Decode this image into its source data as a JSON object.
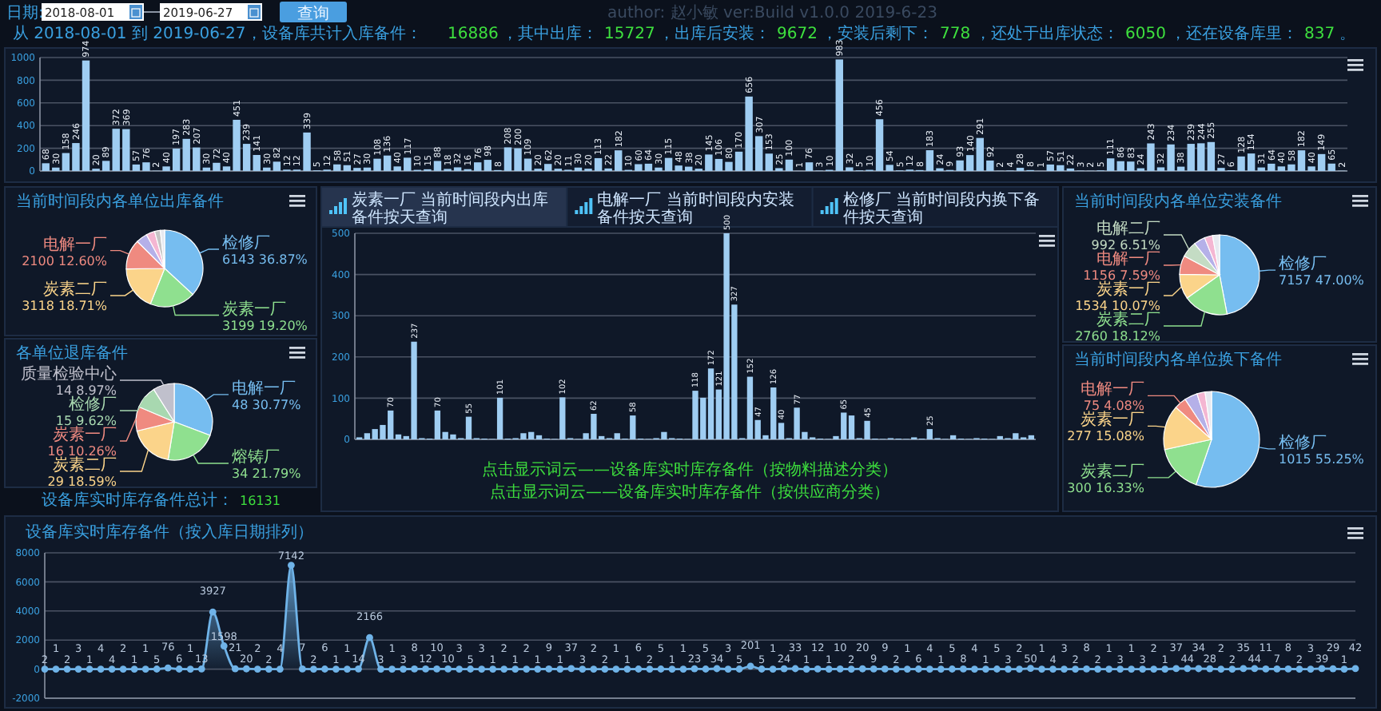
{
  "chart_data": [
    {
      "type": "other",
      "annotations": [
        "日期:",
        "2018-08-01",
        "2019-06-27",
        "查询",
        "author: 赵小敏 ver:Build v1.0.0 2019-6-23",
        "从 2018-08-01 到 2019-06-27，设备库共计入库备件：",
        "16886",
        "，其中出库：",
        "15727",
        "，出库后安装：",
        "9672",
        "，安装后剩下：",
        "778",
        "，还处于出库状态：",
        "6050",
        "，还在设备库里：",
        "837",
        "。",
        "设备库实时库存备件总计：",
        "16131"
      ]
    },
    {
      "type": "bar",
      "categories": [
        null,
        null,
        null,
        null,
        null,
        null,
        null,
        null,
        null,
        null,
        null,
        null,
        null,
        null,
        null,
        null,
        null,
        null,
        null,
        null,
        null,
        null,
        null,
        null,
        null,
        null,
        null,
        null,
        null,
        null,
        null,
        null,
        null,
        null,
        null,
        null,
        null,
        null,
        null,
        null,
        null,
        null,
        null,
        null,
        null,
        null,
        null,
        null,
        null,
        null,
        null,
        null,
        null,
        null,
        null,
        null,
        null,
        null,
        null,
        null,
        null,
        null,
        null,
        null,
        null,
        null,
        null,
        null,
        null,
        null,
        null,
        null,
        null,
        null,
        null,
        null,
        null,
        null,
        null,
        null,
        null,
        null,
        null,
        null,
        null,
        null,
        null,
        null,
        null,
        null,
        null,
        null,
        null,
        null,
        null,
        null,
        null,
        null,
        null,
        null,
        null,
        null,
        null,
        null,
        null,
        null,
        null,
        null,
        null,
        null,
        null,
        null,
        null,
        null,
        null,
        null,
        null,
        null,
        null,
        null,
        null,
        null,
        null,
        null,
        null,
        null,
        null,
        null,
        null,
        null
      ],
      "values": [
        68,
        30,
        158,
        246,
        974,
        20,
        89,
        372,
        369,
        57,
        76,
        2,
        40,
        197,
        283,
        207,
        30,
        72,
        40,
        451,
        239,
        141,
        30,
        82,
        12,
        12,
        339,
        5,
        12,
        58,
        51,
        27,
        30,
        108,
        136,
        40,
        117,
        10,
        15,
        88,
        18,
        32,
        16,
        76,
        98,
        8,
        208,
        200,
        109,
        20,
        62,
        20,
        11,
        30,
        20,
        113,
        22,
        182,
        10,
        60,
        64,
        30,
        115,
        48,
        38,
        20,
        145,
        106,
        80,
        170,
        656,
        307,
        153,
        25,
        100,
        1,
        76,
        3,
        10,
        983,
        32,
        5,
        10,
        456,
        54,
        5,
        12,
        8,
        183,
        24,
        9,
        93,
        140,
        291,
        92,
        2,
        4,
        28,
        8,
        1,
        57,
        51,
        22,
        3,
        2,
        5,
        111,
        86,
        83,
        24,
        243,
        32,
        234,
        38,
        239,
        244,
        255,
        27,
        6,
        128,
        154,
        31,
        64,
        40,
        58,
        182,
        40,
        149,
        65,
        2
      ],
      "color": "#9fcdf2",
      "ylim": [
        0,
        1000
      ],
      "yticks": [
        0,
        200,
        400,
        600,
        800,
        1000
      ],
      "grid": true,
      "data_labels": true
    },
    {
      "type": "pie",
      "title": "当前时间段内各单位出库备件",
      "categories": [
        "检修厂",
        "炭素一厂",
        "炭素二厂",
        "电解一厂",
        null,
        null,
        null,
        null
      ],
      "values": [
        6143,
        3199,
        3118,
        2100,
        800,
        600,
        400,
        301
      ],
      "colors": [
        "#76bdf0",
        "#8fe08f",
        "#fbd48a",
        "#ef8a80",
        "#b5b0e8",
        "#f4b6d2",
        "#c6c6c6",
        "#e6e9f0"
      ],
      "value_labels": [
        "6143 36.87%",
        "3199 19.20%",
        "3118 18.71%",
        "2100 12.60%",
        null,
        null,
        null,
        null
      ]
    },
    {
      "type": "pie",
      "title": "各单位退库备件",
      "categories": [
        "电解一厂",
        "熔铸厂",
        "炭素二厂",
        "炭素一厂",
        "检修厂",
        "质量检验中心"
      ],
      "values": [
        48,
        34,
        29,
        16,
        15,
        14
      ],
      "colors": [
        "#76bdf0",
        "#8fe08f",
        "#fbd48a",
        "#ef8a80",
        "#a8d8b0",
        "#c0c0cc"
      ],
      "value_labels": [
        "48 30.77%",
        "34 21.79%",
        "29 18.59%",
        "16 10.26%",
        "15 9.62%",
        "14 8.97%"
      ]
    },
    {
      "type": "bar",
      "categories": [
        null,
        null,
        null,
        null,
        null,
        null,
        null,
        null,
        null,
        null,
        null,
        null,
        null,
        null,
        null,
        null,
        null,
        null,
        null,
        null,
        null,
        null,
        null,
        null,
        null,
        null,
        null,
        null,
        null,
        null,
        null,
        null,
        null,
        null,
        null,
        null,
        null,
        null,
        null,
        null,
        null,
        null,
        null,
        null,
        null,
        null,
        null,
        null,
        null,
        null,
        null,
        null,
        null,
        null,
        null,
        null,
        null,
        null,
        null,
        null,
        null,
        null,
        null,
        null,
        null,
        null,
        null,
        null,
        null,
        null,
        null,
        null,
        null,
        null,
        null,
        null,
        null,
        null,
        null,
        null,
        null,
        null,
        null,
        null,
        null,
        null,
        null
      ],
      "values": [
        5,
        15,
        25,
        35,
        70,
        12,
        8,
        237,
        3,
        2,
        70,
        18,
        12,
        3,
        55,
        3,
        2,
        1,
        101,
        2,
        3,
        15,
        18,
        10,
        2,
        1,
        102,
        3,
        1,
        15,
        62,
        8,
        3,
        15,
        2,
        58,
        2,
        1,
        3,
        18,
        3,
        2,
        1,
        118,
        101,
        172,
        121,
        500,
        327,
        3,
        152,
        47,
        10,
        126,
        40,
        3,
        77,
        18,
        5,
        2,
        1,
        8,
        65,
        58,
        3,
        45,
        2,
        1,
        3,
        2,
        1,
        5,
        2,
        25,
        3,
        1,
        10,
        2,
        1,
        3,
        2,
        1,
        8,
        3,
        15,
        5,
        10
      ],
      "value_labels": [
        null,
        null,
        null,
        null,
        "70",
        null,
        null,
        "237",
        null,
        null,
        "70",
        null,
        null,
        null,
        "55",
        null,
        null,
        null,
        "101",
        null,
        null,
        null,
        null,
        null,
        null,
        null,
        "102",
        null,
        null,
        null,
        "62",
        null,
        null,
        null,
        null,
        "58",
        null,
        null,
        null,
        null,
        null,
        null,
        null,
        "118",
        null,
        "172",
        "121",
        "500",
        "327",
        null,
        "152",
        "47",
        null,
        "126",
        "40",
        null,
        "77",
        null,
        null,
        null,
        null,
        null,
        "65",
        null,
        null,
        "45",
        null,
        null,
        null,
        null,
        null,
        null,
        null,
        "25",
        null,
        null,
        null,
        null,
        null,
        null,
        null,
        null,
        null,
        null,
        null,
        null,
        null
      ],
      "color": "#9fcdf2",
      "ylim": [
        0,
        500
      ],
      "yticks": [
        0,
        100,
        200,
        300,
        400,
        500
      ],
      "grid": true,
      "annotations": [
        "炭素一厂 当前时间段内出库备件按天查询",
        "电解一厂 当前时间段内安装备件按天查询",
        "检修厂 当前时间段内换下备件按天查询",
        "点击显示词云——设备库实时库存备件（按物料描述分类）",
        "点击显示词云——设备库实时库存备件（按供应商分类）"
      ]
    },
    {
      "type": "pie",
      "title": "当前时间段内各单位安装备件",
      "categories": [
        "检修厂",
        "炭素二厂",
        "炭素一厂",
        "电解一厂",
        "电解二厂",
        null,
        null,
        null
      ],
      "values": [
        7157,
        2760,
        1534,
        1156,
        992,
        700,
        500,
        429
      ],
      "colors": [
        "#76bdf0",
        "#8fe08f",
        "#fbd48a",
        "#ef8a80",
        "#c4dcc4",
        "#b5b0e8",
        "#f4b6d2",
        "#e6e9f0"
      ],
      "value_labels": [
        "7157 47.00%",
        "2760 18.12%",
        "1534 10.07%",
        "1156 7.59%",
        "992 6.51%",
        null,
        null,
        null
      ]
    },
    {
      "type": "pie",
      "title": "当前时间段内各单位换下备件",
      "categories": [
        "检修厂",
        "炭素二厂",
        "炭素一厂",
        "电解一厂",
        null,
        null,
        null
      ],
      "values": [
        1015,
        300,
        277,
        75,
        80,
        50,
        40
      ],
      "colors": [
        "#76bdf0",
        "#8fe08f",
        "#fbd48a",
        "#ef8a80",
        "#b5b0e8",
        "#f4b6d2",
        "#e6e9f0"
      ],
      "value_labels": [
        "1015 55.25%",
        "300 16.33%",
        "277 15.08%",
        "75 4.08%",
        null,
        null,
        null
      ]
    },
    {
      "type": "area",
      "title": "设备库实时库存备件（按入库日期排列）",
      "categories": [
        null,
        null,
        null,
        null,
        null,
        null,
        null,
        null,
        null,
        null,
        null,
        null,
        null,
        null,
        null,
        null,
        null,
        null,
        null,
        null,
        null,
        null,
        null,
        null,
        null,
        null,
        null,
        null,
        null,
        null,
        null,
        null,
        null,
        null,
        null,
        null,
        null,
        null,
        null,
        null,
        null,
        null,
        null,
        null,
        null,
        null,
        null,
        null,
        null,
        null,
        null,
        null,
        null,
        null,
        null,
        null,
        null,
        null,
        null,
        null,
        null,
        null,
        null,
        null,
        null,
        null,
        null,
        null,
        null,
        null,
        null,
        null,
        null,
        null,
        null,
        null,
        null,
        null,
        null,
        null,
        null,
        null,
        null,
        null,
        null,
        null,
        null,
        null,
        null,
        null,
        null,
        null,
        null,
        null,
        null,
        null,
        null,
        null,
        null,
        null,
        null,
        null,
        null,
        null,
        null,
        null,
        null,
        null,
        null,
        null,
        null,
        null,
        null,
        null,
        null,
        null,
        null,
        null
      ],
      "values": [
        2,
        1,
        2,
        3,
        1,
        4,
        4,
        2,
        1,
        1,
        5,
        76,
        6,
        1,
        13,
        3927,
        1598,
        21,
        20,
        2,
        2,
        4,
        7142,
        7,
        2,
        6,
        1,
        1,
        14,
        2166,
        3,
        1,
        3,
        8,
        12,
        10,
        10,
        3,
        5,
        3,
        1,
        2,
        1,
        2,
        1,
        9,
        1,
        37,
        3,
        2,
        2,
        1,
        1,
        6,
        2,
        5,
        1,
        1,
        23,
        5,
        34,
        3,
        5,
        201,
        5,
        1,
        24,
        33,
        1,
        12,
        1,
        10,
        2,
        20,
        9,
        9,
        2,
        1,
        6,
        4,
        1,
        5,
        8,
        4,
        1,
        5,
        3,
        2,
        50,
        1,
        4,
        3,
        2,
        8,
        2,
        1,
        3,
        1,
        3,
        2,
        1,
        37,
        44,
        34,
        28,
        2,
        2,
        35,
        44,
        11,
        7,
        8,
        2,
        3,
        39,
        29,
        1,
        42
      ],
      "color": "#6fb3e8",
      "ylim": [
        -2000,
        8000
      ],
      "yticks": [
        -2000,
        0,
        2000,
        4000,
        6000,
        8000
      ],
      "grid": true,
      "marker": "circle",
      "data_labels": true
    }
  ]
}
